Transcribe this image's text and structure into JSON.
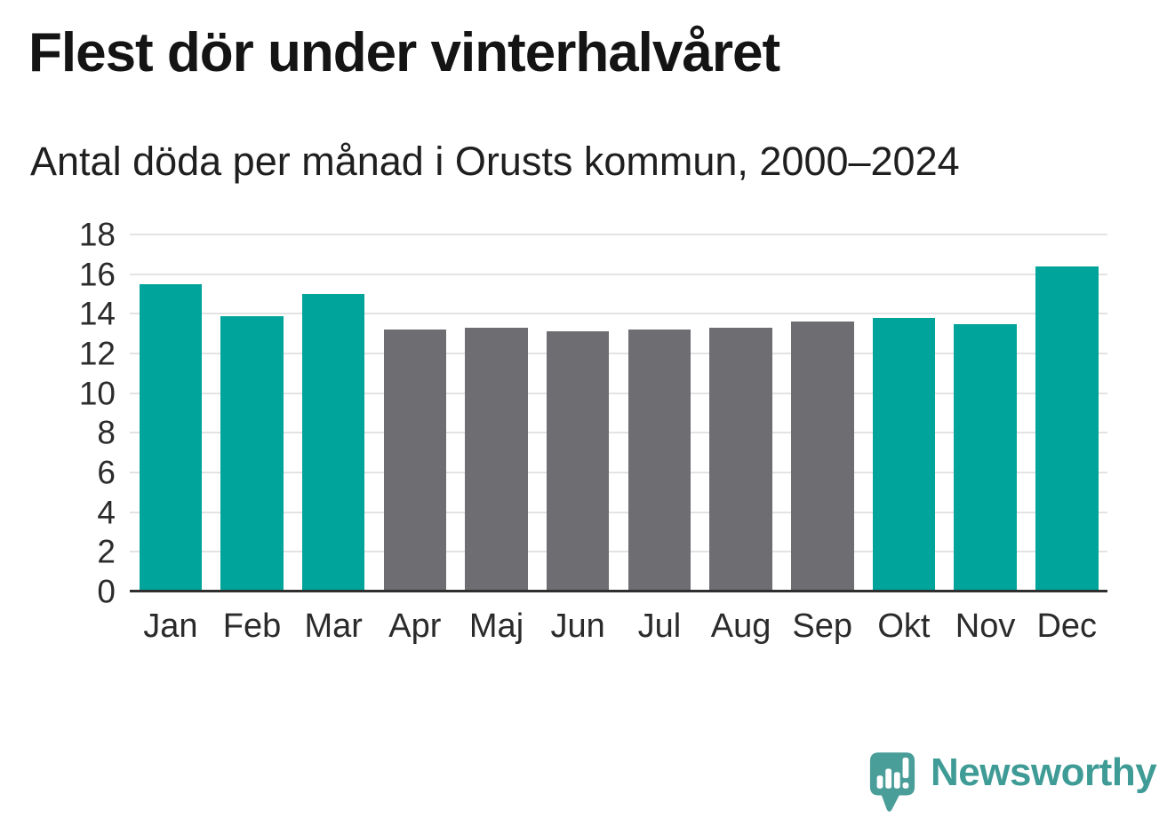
{
  "chart_data": {
    "type": "bar",
    "title": "Flest dör under vinterhalvåret",
    "subtitle": "Antal döda per månad i Orusts kommun, 2000–2024",
    "categories": [
      "Jan",
      "Feb",
      "Mar",
      "Apr",
      "Maj",
      "Jun",
      "Jul",
      "Aug",
      "Sep",
      "Okt",
      "Nov",
      "Dec"
    ],
    "values": [
      15.5,
      13.9,
      15.0,
      13.2,
      13.3,
      13.1,
      13.2,
      13.3,
      13.6,
      13.8,
      13.5,
      16.4
    ],
    "highlighted": [
      true,
      true,
      true,
      false,
      false,
      false,
      false,
      false,
      false,
      true,
      true,
      true
    ],
    "colors": {
      "highlight": "#00a49b",
      "base": "#6e6e72",
      "grid": "#e3e3e3",
      "axis": "#2f2f2f",
      "tick_text": "#2b2b2b"
    },
    "xlabel": "",
    "ylabel": "",
    "ylim": [
      0,
      18
    ],
    "yticks": [
      0,
      2,
      4,
      6,
      8,
      10,
      12,
      14,
      16,
      18
    ],
    "grid": true,
    "legend": "none"
  },
  "footer": {
    "brand": "Newsworthy",
    "brand_color": "#3f9b96",
    "logo_color": "#4a9e99"
  }
}
